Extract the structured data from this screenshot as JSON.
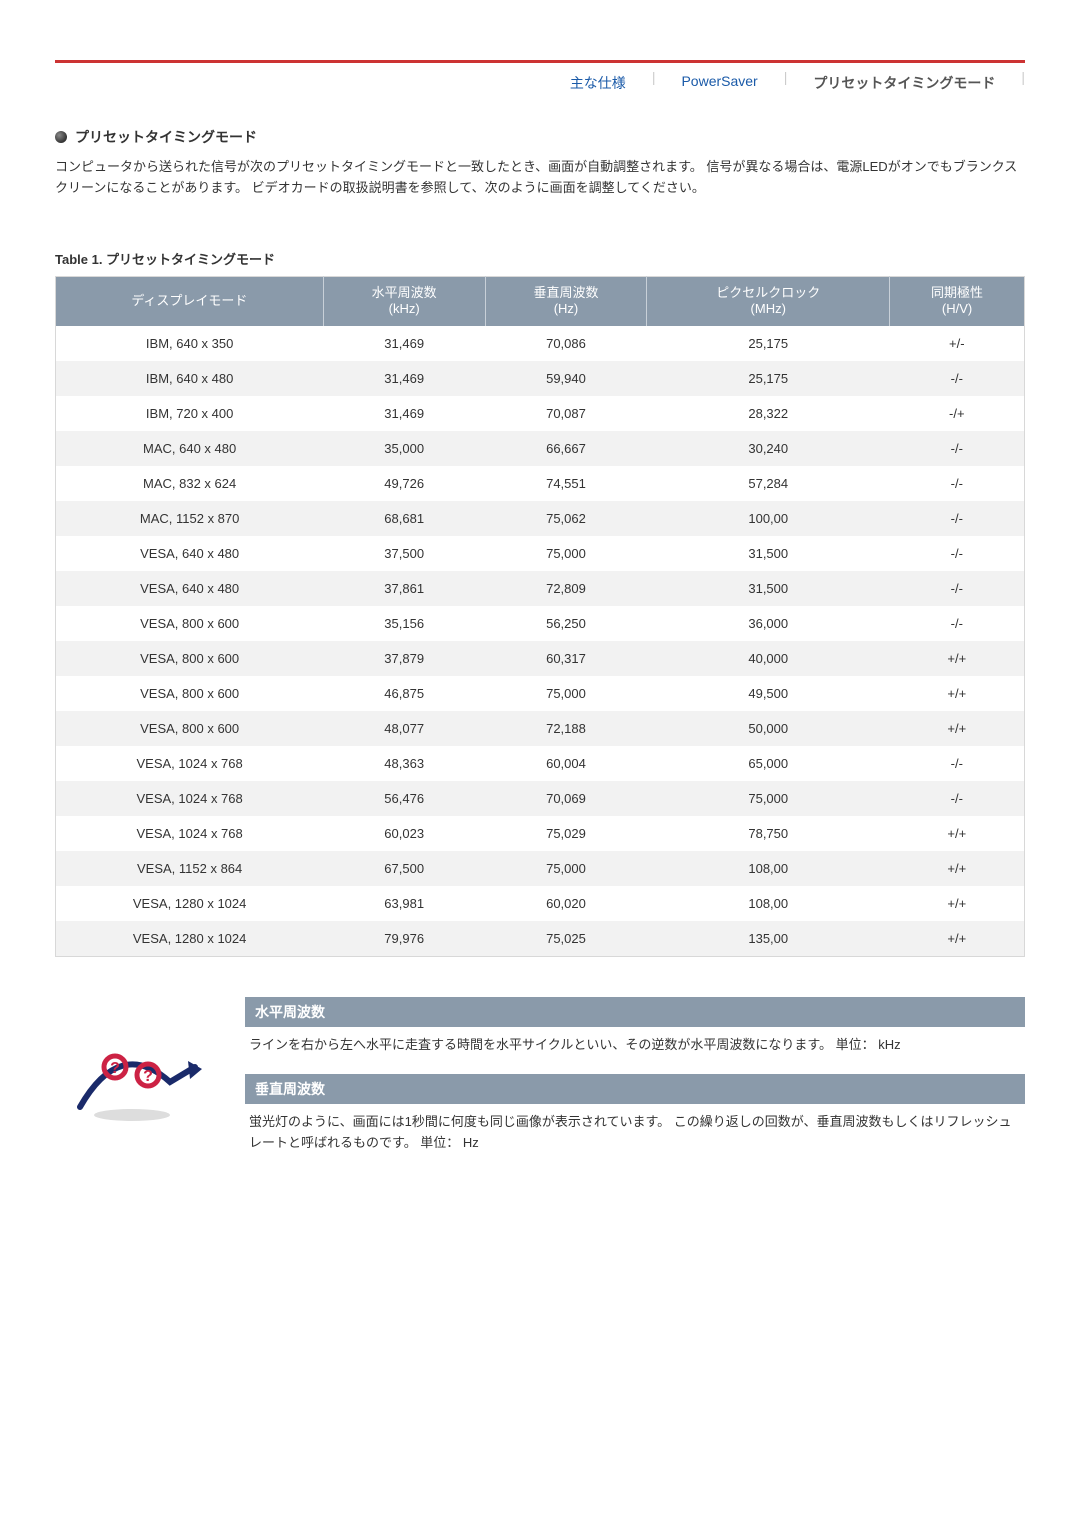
{
  "tabs": {
    "spec": "主な仕様",
    "power": "PowerSaver",
    "preset": "プリセットタイミングモード"
  },
  "section": {
    "title": "プリセットタイミングモード",
    "intro": "コンピュータから送られた信号が次のプリセットタイミングモードと一致したとき、画面が自動調整されます。 信号が異なる場合は、電源LEDがオンでもブランクスクリーンになることがあります。 ビデオカードの取扱説明書を参照して、次のように画面を調整してください。"
  },
  "table": {
    "caption": "Table 1. プリセットタイミングモード",
    "headers": {
      "mode": "ディスプレイモード",
      "hfreq": "水平周波数",
      "hfreq_unit": "(kHz)",
      "vfreq": "垂直周波数",
      "vfreq_unit": "(Hz)",
      "pclock": "ピクセルクロック",
      "pclock_unit": "(MHz)",
      "sync": "同期極性",
      "sync_unit": "(H/V)"
    },
    "header_bg": "#8a9aaa",
    "header_fg": "#ffffff",
    "row_alt_bg": "#f2f2f2",
    "border_color": "#d8d8d8",
    "rows": [
      {
        "mode": "IBM, 640 x 350",
        "h": "31,469",
        "v": "70,086",
        "p": "25,175",
        "s": "+/-"
      },
      {
        "mode": "IBM, 640 x 480",
        "h": "31,469",
        "v": "59,940",
        "p": "25,175",
        "s": "-/-"
      },
      {
        "mode": "IBM, 720 x 400",
        "h": "31,469",
        "v": "70,087",
        "p": "28,322",
        "s": "-/+"
      },
      {
        "mode": "MAC, 640 x 480",
        "h": "35,000",
        "v": "66,667",
        "p": "30,240",
        "s": "-/-"
      },
      {
        "mode": "MAC, 832 x 624",
        "h": "49,726",
        "v": "74,551",
        "p": "57,284",
        "s": "-/-"
      },
      {
        "mode": "MAC, 1152 x 870",
        "h": "68,681",
        "v": "75,062",
        "p": "100,00",
        "s": "-/-"
      },
      {
        "mode": "VESA, 640 x 480",
        "h": "37,500",
        "v": "75,000",
        "p": "31,500",
        "s": "-/-"
      },
      {
        "mode": "VESA, 640 x 480",
        "h": "37,861",
        "v": "72,809",
        "p": "31,500",
        "s": "-/-"
      },
      {
        "mode": "VESA, 800 x 600",
        "h": "35,156",
        "v": "56,250",
        "p": "36,000",
        "s": "-/-"
      },
      {
        "mode": "VESA, 800 x 600",
        "h": "37,879",
        "v": "60,317",
        "p": "40,000",
        "s": "+/+"
      },
      {
        "mode": "VESA, 800 x 600",
        "h": "46,875",
        "v": "75,000",
        "p": "49,500",
        "s": "+/+"
      },
      {
        "mode": "VESA, 800 x 600",
        "h": "48,077",
        "v": "72,188",
        "p": "50,000",
        "s": "+/+"
      },
      {
        "mode": "VESA, 1024 x 768",
        "h": "48,363",
        "v": "60,004",
        "p": "65,000",
        "s": "-/-"
      },
      {
        "mode": "VESA, 1024 x 768",
        "h": "56,476",
        "v": "70,069",
        "p": "75,000",
        "s": "-/-"
      },
      {
        "mode": "VESA, 1024 x 768",
        "h": "60,023",
        "v": "75,029",
        "p": "78,750",
        "s": "+/+"
      },
      {
        "mode": "VESA, 1152 x 864",
        "h": "67,500",
        "v": "75,000",
        "p": "108,00",
        "s": "+/+"
      },
      {
        "mode": "VESA, 1280 x 1024",
        "h": "63,981",
        "v": "60,020",
        "p": "108,00",
        "s": "+/+"
      },
      {
        "mode": "VESA, 1280 x 1024",
        "h": "79,976",
        "v": "75,025",
        "p": "135,00",
        "s": "+/+"
      }
    ]
  },
  "info": {
    "hfreq_title": "水平周波数",
    "hfreq_body": "ラインを右から左へ水平に走査する時間を水平サイクルといい、その逆数が水平周波数になります。 単位： kHz",
    "vfreq_title": "垂直周波数",
    "vfreq_body": "蛍光灯のように、画面には1秒間に何度も同じ画像が表示されています。 この繰り返しの回数が、垂直周波数もしくはリフレッシュレートと呼ばれるものです。 単位： Hz"
  }
}
